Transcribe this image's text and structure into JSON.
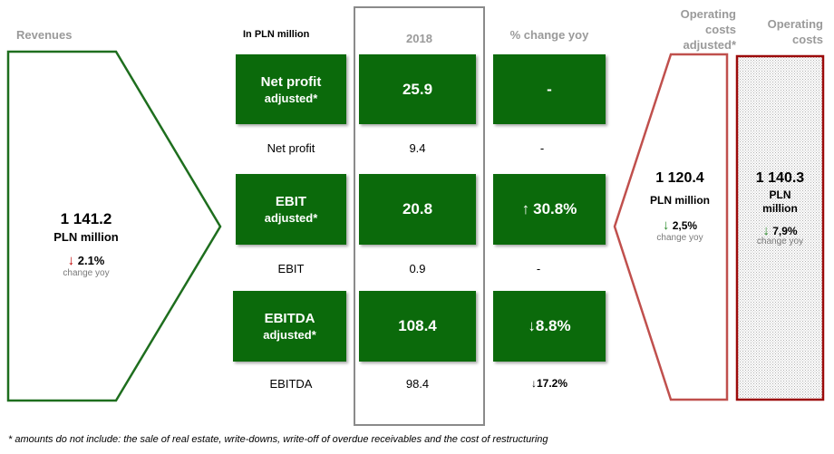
{
  "headers": {
    "revenues": "Revenues",
    "unit": "In PLN million",
    "year": "2018",
    "change": "% change yoy",
    "opcost_adj_l1": "Operating",
    "opcost_adj_l2": "costs",
    "opcost_adj_l3": "adjusted*",
    "opcost_l1": "Operating",
    "opcost_l2": "costs"
  },
  "revenues": {
    "value": "1 141.2",
    "unit": "PLN million",
    "change_arrow": "↓",
    "change": "2.1%",
    "change_label": "change yoy"
  },
  "rows": {
    "net_profit_adj": {
      "label1": "Net profit",
      "label2": "adjusted*",
      "value": "25.9",
      "change": "-"
    },
    "net_profit": {
      "label": "Net profit",
      "value": "9.4",
      "change": "-"
    },
    "ebit_adj": {
      "label1": "EBIT",
      "label2": "adjusted*",
      "value": "20.8",
      "change_arrow": "↑",
      "change": "30.8%"
    },
    "ebit": {
      "label": "EBIT",
      "value": "0.9",
      "change": "-"
    },
    "ebitda_adj": {
      "label1": "EBITDA",
      "label2": "adjusted*",
      "value": "108.4",
      "change_arrow": "↓",
      "change": "8.8%"
    },
    "ebitda": {
      "label": "EBITDA",
      "value": "98.4",
      "change_arrow": "↓",
      "change": "17.2%"
    }
  },
  "opcost_adj": {
    "value": "1 120.4",
    "unit": "PLN million",
    "change_arrow": "↓",
    "change": "2,5%",
    "change_label": "change yoy"
  },
  "opcost": {
    "value": "1 140.3",
    "unit_l1": "PLN",
    "unit_l2": "million",
    "change_arrow": "↓",
    "change": "7,9%",
    "change_label": "change yoy"
  },
  "footnote": "* amounts do not include: the sale of real estate, write-downs, write-off of overdue receivables and the cost of restructuring",
  "colors": {
    "green": "#0b6a0b",
    "dark_green_outline": "#1e6e1e",
    "red_outline": "#c0504d",
    "dark_red_outline": "#9c0a0a",
    "arrow_down_red": "#c00000",
    "arrow_down_green": "#2a8a2a"
  }
}
